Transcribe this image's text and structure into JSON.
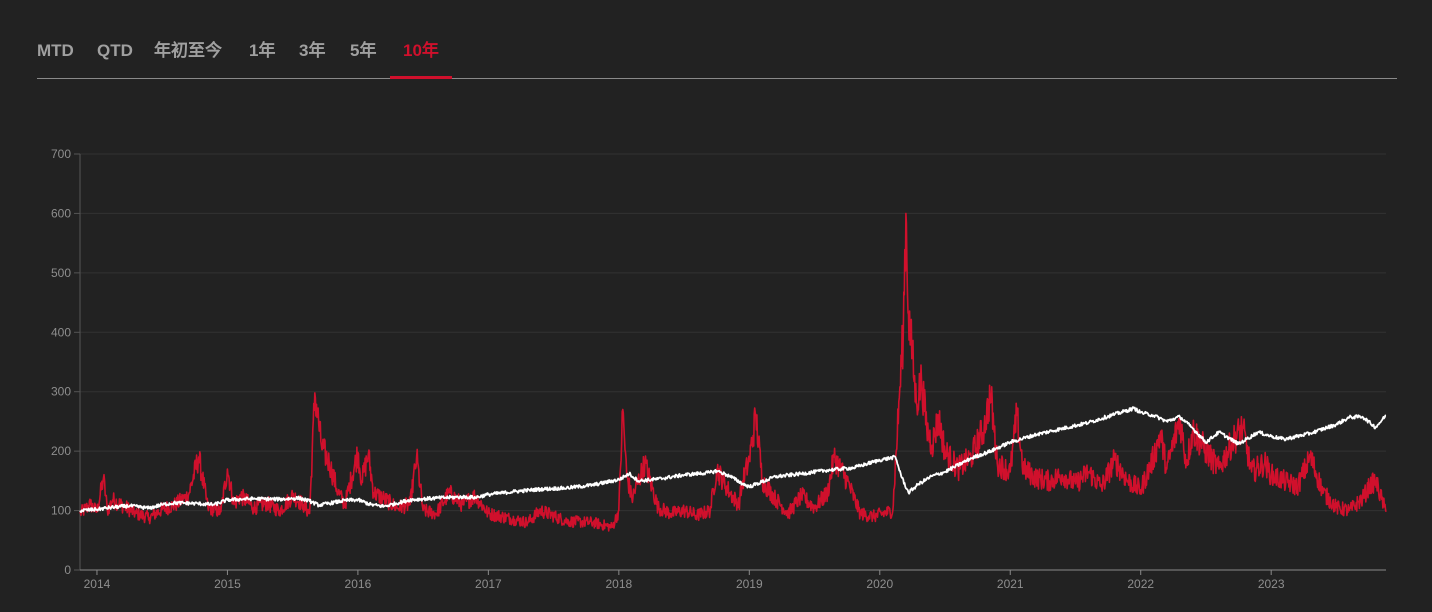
{
  "tabs": [
    {
      "label": "MTD",
      "active": false
    },
    {
      "label": "QTD",
      "active": false
    },
    {
      "label": "年初至今",
      "active": false
    },
    {
      "label": "1年",
      "active": false
    },
    {
      "label": "3年",
      "active": false
    },
    {
      "label": "5年",
      "active": false
    },
    {
      "label": "10年",
      "active": true
    }
  ],
  "colors": {
    "background": "#222222",
    "accent": "#d0102c",
    "series_red": "#d0102c",
    "series_white": "#ffffff",
    "grid": "#333333",
    "axis_text": "#8e8e8e"
  },
  "chart_data": {
    "type": "line",
    "title": "",
    "xlabel": "",
    "ylabel": "",
    "xlim": [
      2013.87,
      2023.88
    ],
    "ylim": [
      0,
      700
    ],
    "yticks": [
      0,
      100,
      200,
      300,
      400,
      500,
      600,
      700
    ],
    "xticks": [
      {
        "label": "2014",
        "value": 2014.0
      },
      {
        "label": "2015",
        "value": 2015.0
      },
      {
        "label": "2016",
        "value": 2016.0
      },
      {
        "label": "2017",
        "value": 2017.0
      },
      {
        "label": "2018",
        "value": 2018.0
      },
      {
        "label": "2019",
        "value": 2019.0
      },
      {
        "label": "2020",
        "value": 2020.0
      },
      {
        "label": "2021",
        "value": 2021.0
      },
      {
        "label": "2022",
        "value": 2022.0
      },
      {
        "label": "2023",
        "value": 2023.0
      }
    ],
    "grid": true,
    "legend": "none",
    "series": [
      {
        "color": "#ffffff",
        "x": [
          2013.87,
          2014.0,
          2014.1,
          2014.25,
          2014.4,
          2014.5,
          2014.6,
          2014.75,
          2014.9,
          2015.0,
          2015.2,
          2015.4,
          2015.55,
          2015.63,
          2015.7,
          2015.9,
          2016.0,
          2016.1,
          2016.2,
          2016.4,
          2016.6,
          2016.8,
          2016.9,
          2017.0,
          2017.2,
          2017.4,
          2017.6,
          2017.8,
          2018.0,
          2018.08,
          2018.15,
          2018.3,
          2018.5,
          2018.7,
          2018.75,
          2018.85,
          2018.95,
          2019.0,
          2019.2,
          2019.4,
          2019.6,
          2019.8,
          2020.0,
          2020.12,
          2020.17,
          2020.22,
          2020.3,
          2020.4,
          2020.5,
          2020.7,
          2020.85,
          2021.0,
          2021.2,
          2021.4,
          2021.6,
          2021.8,
          2021.95,
          2022.0,
          2022.1,
          2022.2,
          2022.3,
          2022.4,
          2022.5,
          2022.6,
          2022.75,
          2022.9,
          2023.0,
          2023.1,
          2023.3,
          2023.5,
          2023.6,
          2023.7,
          2023.8,
          2023.88
        ],
        "y": [
          100,
          102,
          105,
          108,
          104,
          110,
          113,
          112,
          110,
          118,
          120,
          119,
          121,
          116,
          109,
          117,
          118,
          110,
          107,
          118,
          121,
          123,
          122,
          127,
          132,
          136,
          138,
          143,
          152,
          162,
          150,
          153,
          160,
          164,
          167,
          158,
          145,
          140,
          157,
          162,
          168,
          172,
          185,
          190,
          155,
          130,
          145,
          158,
          165,
          188,
          200,
          215,
          228,
          238,
          248,
          262,
          272,
          265,
          260,
          250,
          258,
          238,
          215,
          232,
          212,
          232,
          225,
          220,
          230,
          245,
          257,
          258,
          240,
          260
        ]
      },
      {
        "color": "#d0102c",
        "x": [
          2013.87,
          2013.95,
          2014.0,
          2014.05,
          2014.08,
          2014.12,
          2014.2,
          2014.3,
          2014.4,
          2014.5,
          2014.6,
          2014.7,
          2014.78,
          2014.85,
          2014.95,
          2015.0,
          2015.05,
          2015.1,
          2015.2,
          2015.3,
          2015.4,
          2015.5,
          2015.58,
          2015.63,
          2015.67,
          2015.72,
          2015.78,
          2015.85,
          2015.9,
          2016.0,
          2016.03,
          2016.08,
          2016.12,
          2016.2,
          2016.3,
          2016.4,
          2016.45,
          2016.5,
          2016.6,
          2016.7,
          2016.8,
          2016.9,
          2017.0,
          2017.2,
          2017.3,
          2017.4,
          2017.6,
          2017.8,
          2017.95,
          2018.0,
          2018.03,
          2018.06,
          2018.1,
          2018.2,
          2018.3,
          2018.4,
          2018.5,
          2018.6,
          2018.7,
          2018.75,
          2018.85,
          2018.92,
          2018.95,
          2019.0,
          2019.05,
          2019.1,
          2019.2,
          2019.3,
          2019.4,
          2019.5,
          2019.6,
          2019.65,
          2019.75,
          2019.85,
          2019.95,
          2020.1,
          2020.15,
          2020.18,
          2020.2,
          2020.22,
          2020.25,
          2020.28,
          2020.32,
          2020.36,
          2020.4,
          2020.45,
          2020.5,
          2020.6,
          2020.7,
          2020.8,
          2020.85,
          2020.9,
          2021.0,
          2021.05,
          2021.1,
          2021.2,
          2021.3,
          2021.4,
          2021.5,
          2021.6,
          2021.7,
          2021.8,
          2021.9,
          2022.0,
          2022.1,
          2022.15,
          2022.2,
          2022.3,
          2022.35,
          2022.4,
          2022.5,
          2022.6,
          2022.7,
          2022.78,
          2022.85,
          2022.95,
          2023.0,
          2023.1,
          2023.2,
          2023.3,
          2023.4,
          2023.5,
          2023.6,
          2023.7,
          2023.75,
          2023.8,
          2023.88
        ],
        "y": [
          95,
          110,
          98,
          155,
          100,
          118,
          108,
          95,
          88,
          102,
          110,
          125,
          190,
          105,
          98,
          170,
          110,
          125,
          105,
          112,
          100,
          125,
          110,
          95,
          298,
          210,
          180,
          130,
          110,
          198,
          150,
          195,
          130,
          120,
          105,
          110,
          190,
          100,
          95,
          130,
          110,
          125,
          95,
          85,
          80,
          100,
          82,
          80,
          72,
          100,
          270,
          160,
          120,
          180,
          105,
          95,
          100,
          92,
          100,
          170,
          130,
          110,
          150,
          185,
          260,
          150,
          120,
          95,
          125,
          105,
          130,
          190,
          150,
          95,
          90,
          100,
          290,
          400,
          600,
          430,
          360,
          280,
          320,
          240,
          210,
          255,
          200,
          170,
          190,
          240,
          295,
          180,
          165,
          260,
          170,
          155,
          150,
          160,
          145,
          165,
          140,
          185,
          150,
          135,
          190,
          230,
          170,
          255,
          180,
          235,
          200,
          170,
          215,
          240,
          165,
          180,
          160,
          150,
          140,
          190,
          130,
          105,
          100,
          120,
          140,
          150,
          98
        ]
      }
    ]
  }
}
